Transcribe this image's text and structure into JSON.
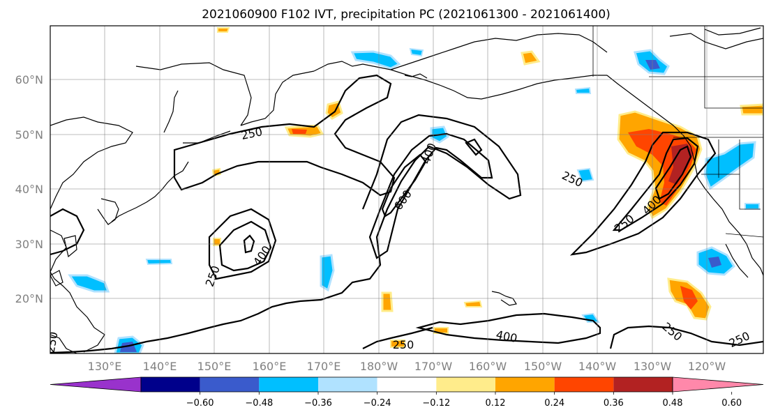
{
  "title": "2021060900 F102 IVT, precipitation PC (2021061300 - 2021061400)",
  "lat_labels": [
    "60°N",
    "50°N",
    "40°N",
    "30°N",
    "20°N"
  ],
  "lon_labels": [
    "130°E",
    "140°E",
    "150°E",
    "160°E",
    "170°E",
    "180°W",
    "170°W",
    "160°W",
    "150°W",
    "140°W",
    "130°W",
    "120°W"
  ],
  "colorbar": {
    "ticks": [
      "−0.60",
      "−0.48",
      "−0.36",
      "−0.24",
      "−0.12",
      "0.12",
      "0.24",
      "0.36",
      "0.48",
      "0.60"
    ],
    "colors": [
      "#9932cc",
      "#00008b",
      "#3a5bcc",
      "#00bfff",
      "#b0e2ff",
      "#ffffff",
      "#ffec8b",
      "#ffa500",
      "#ff4500",
      "#b22222",
      "#ff88aa"
    ]
  },
  "contour_labels": [
    "250",
    "400",
    "600",
    "400",
    "250",
    "250",
    "400",
    "250",
    "400",
    "250",
    "250",
    "400",
    "250",
    "250"
  ],
  "map_colors": {
    "orange": "#ffa500",
    "red": "#ff4500",
    "darkred": "#b22222",
    "yellow": "#ffec8b",
    "blue": "#00bfff",
    "lightblue": "#b0e2ff",
    "royal": "#3a5bcc"
  }
}
